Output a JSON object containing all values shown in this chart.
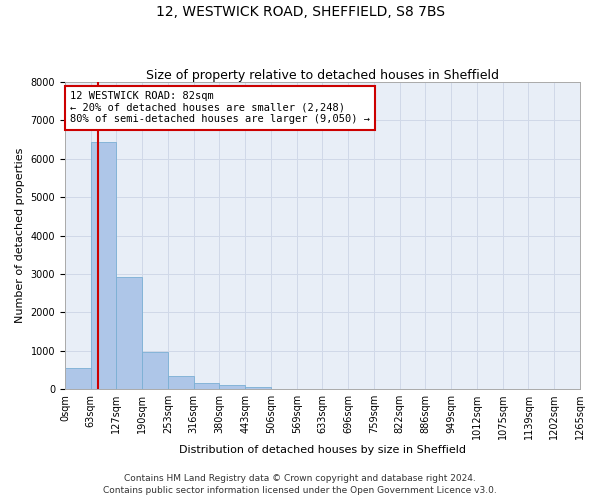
{
  "title": "12, WESTWICK ROAD, SHEFFIELD, S8 7BS",
  "subtitle": "Size of property relative to detached houses in Sheffield",
  "xlabel": "Distribution of detached houses by size in Sheffield",
  "ylabel": "Number of detached properties",
  "bin_labels": [
    "0sqm",
    "63sqm",
    "127sqm",
    "190sqm",
    "253sqm",
    "316sqm",
    "380sqm",
    "443sqm",
    "506sqm",
    "569sqm",
    "633sqm",
    "696sqm",
    "759sqm",
    "822sqm",
    "886sqm",
    "949sqm",
    "1012sqm",
    "1075sqm",
    "1139sqm",
    "1202sqm",
    "1265sqm"
  ],
  "bar_values": [
    550,
    6430,
    2930,
    970,
    340,
    160,
    100,
    65,
    0,
    0,
    0,
    0,
    0,
    0,
    0,
    0,
    0,
    0,
    0,
    0
  ],
  "bar_color": "#aec6e8",
  "bar_edge_color": "#7aafd4",
  "property_line_label": "12 WESTWICK ROAD: 82sqm",
  "annotation_line1": "← 20% of detached houses are smaller (2,248)",
  "annotation_line2": "80% of semi-detached houses are larger (9,050) →",
  "annotation_box_color": "#ffffff",
  "annotation_box_edge": "#cc0000",
  "vline_color": "#cc0000",
  "ylim": [
    0,
    8000
  ],
  "yticks": [
    0,
    1000,
    2000,
    3000,
    4000,
    5000,
    6000,
    7000,
    8000
  ],
  "grid_color": "#d0d8e8",
  "bg_color": "#e8eef7",
  "footer1": "Contains HM Land Registry data © Crown copyright and database right 2024.",
  "footer2": "Contains public sector information licensed under the Open Government Licence v3.0.",
  "title_fontsize": 10,
  "subtitle_fontsize": 9,
  "label_fontsize": 8,
  "tick_fontsize": 7,
  "annotation_fontsize": 7.5,
  "footer_fontsize": 6.5,
  "bin_edges": [
    0,
    63,
    127,
    190,
    253,
    316,
    380,
    443,
    506,
    569,
    633,
    696,
    759,
    822,
    886,
    949,
    1012,
    1075,
    1139,
    1202,
    1265
  ],
  "property_size": 82
}
